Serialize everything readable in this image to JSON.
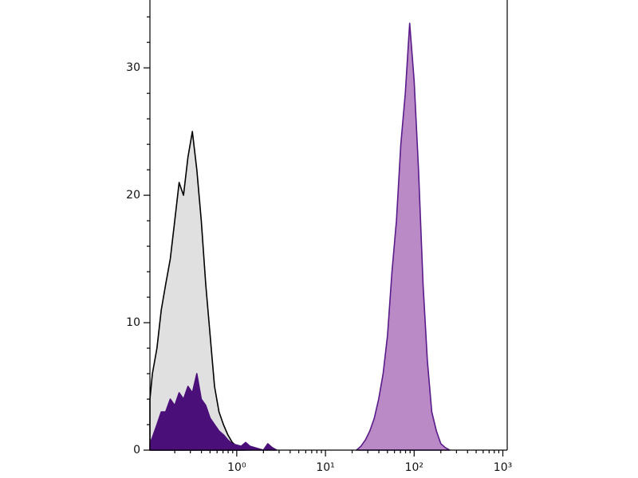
{
  "chart_data": {
    "type": "area",
    "xscale": "log",
    "xlim": [
      0.105,
      1120
    ],
    "ylim": [
      0,
      35.2
    ],
    "xticks": [
      {
        "value": 1,
        "label": "10⁰"
      },
      {
        "value": 10,
        "label": "10¹"
      },
      {
        "value": 100,
        "label": "10²"
      },
      {
        "value": 1000,
        "label": "10³"
      }
    ],
    "xminor_ticks": [
      0.2,
      0.3,
      0.4,
      0.5,
      0.6,
      0.7,
      0.8,
      0.9,
      2,
      3,
      4,
      5,
      6,
      7,
      8,
      9,
      20,
      30,
      40,
      50,
      60,
      70,
      80,
      90,
      200,
      300,
      400,
      500,
      600,
      700,
      800,
      900
    ],
    "yticks": [
      0,
      10,
      20,
      30
    ],
    "yminor_ticks": [
      2,
      4,
      6,
      8,
      12,
      14,
      16,
      18,
      22,
      24,
      26,
      28,
      32,
      34
    ],
    "series": [
      {
        "color": "#000000",
        "fill": "#e0e0e0",
        "x": [
          0.105,
          0.112,
          0.126,
          0.141,
          0.158,
          0.178,
          0.2,
          0.224,
          0.251,
          0.282,
          0.316,
          0.355,
          0.398,
          0.447,
          0.501,
          0.562,
          0.631,
          0.708,
          0.794,
          0.891,
          1,
          1.12,
          1.26
        ],
        "values": [
          4,
          6,
          8,
          11,
          13,
          15,
          18,
          21,
          20,
          23,
          25,
          22,
          18,
          13,
          9,
          5,
          3,
          2,
          1.2,
          0.6,
          0.3,
          0.1,
          0
        ]
      },
      {
        "color": "#5a1a8a",
        "fill": "#b98ac6",
        "x": [
          22.4,
          25.1,
          28.2,
          31.6,
          35.5,
          39.8,
          44.7,
          50.1,
          56.2,
          63.1,
          70.8,
          79.4,
          89.1,
          100,
          112,
          126,
          141,
          158,
          178,
          200,
          224,
          251
        ],
        "values": [
          0,
          0.3,
          0.8,
          1.5,
          2.5,
          4,
          6,
          9,
          14,
          18,
          24,
          28,
          33.5,
          29,
          22,
          13,
          7,
          3,
          1.5,
          0.5,
          0.2,
          0
        ]
      },
      {
        "color": "#4b0f7a",
        "fill": "#4b0f7a",
        "x": [
          0.105,
          0.112,
          0.126,
          0.141,
          0.158,
          0.178,
          0.2,
          0.224,
          0.251,
          0.282,
          0.316,
          0.355,
          0.398,
          0.447,
          0.501,
          0.562,
          0.631,
          0.708,
          0.794,
          0.891,
          1,
          1.12,
          1.26,
          1.41,
          1.58,
          1.78,
          2,
          2.24,
          2.51,
          2.82
        ],
        "values": [
          0.5,
          1,
          2,
          3,
          3,
          4,
          3.5,
          4.5,
          4,
          5,
          4.5,
          6,
          4,
          3.5,
          2.5,
          2,
          1.5,
          1.2,
          0.8,
          0.5,
          0.4,
          0.3,
          0.6,
          0.3,
          0.2,
          0.1,
          0,
          0.5,
          0.2,
          0
        ]
      }
    ]
  }
}
